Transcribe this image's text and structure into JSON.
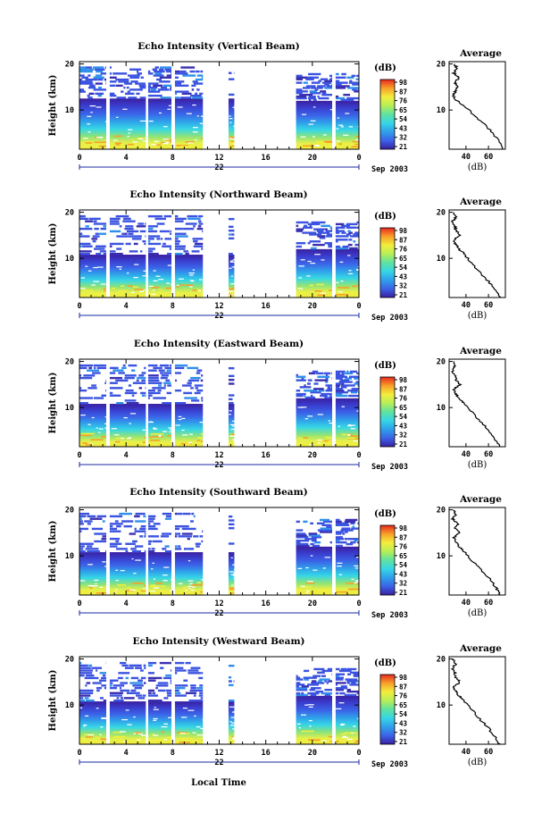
{
  "chart_data": {
    "type": "heatmap",
    "shared": {
      "xlabel": "Local Time",
      "x_ticks": [
        "0",
        "4",
        "8",
        "12",
        "16",
        "20",
        "0"
      ],
      "xlim": [
        0,
        24
      ],
      "day_label": "22",
      "date_label": "Sep 2003",
      "ylabel": "Height (km)",
      "y_ticks": [
        "20",
        "10"
      ],
      "ylim": [
        1.5,
        20.5
      ],
      "colorbar_unit": "(dB)",
      "colorbar_ticks": [
        "98",
        "87",
        "76",
        "65",
        "54",
        "43",
        "32",
        "21"
      ],
      "average_title": "Average",
      "average_xlabel": "(dB)",
      "average_xticks": [
        "40",
        "60"
      ],
      "average_xlim": [
        25,
        75
      ],
      "data_gaps_local_time": [
        [
          2.3,
          2.6
        ],
        [
          5.7,
          5.9
        ],
        [
          7.9,
          8.2
        ],
        [
          10.6,
          12.8
        ],
        [
          13.3,
          18.6
        ],
        [
          21.7,
          22.0
        ]
      ],
      "colors": [
        "#3a1fa0",
        "#3b63e8",
        "#2fa0ea",
        "#36d6e6",
        "#5fe2a0",
        "#b6ef58",
        "#f3ee3c",
        "#f8a028",
        "#e8281e"
      ]
    },
    "panels": [
      {
        "title": "Echo Intensity (Vertical Beam)",
        "average_profile": {
          "height_km": [
            1.5,
            3,
            5,
            7,
            9,
            11,
            12,
            13,
            14,
            15,
            16,
            17,
            18,
            19,
            20
          ],
          "db": [
            72,
            70,
            64,
            56,
            47,
            38,
            32,
            29,
            30,
            33,
            30,
            34,
            29,
            32,
            30
          ]
        }
      },
      {
        "title": "Echo Intensity (Northward Beam)",
        "average_profile": {
          "height_km": [
            1.5,
            3,
            5,
            7,
            9,
            11,
            12,
            13,
            14,
            15,
            16,
            17,
            18,
            19,
            20
          ],
          "db": [
            70,
            67,
            60,
            52,
            45,
            38,
            34,
            31,
            29,
            35,
            31,
            30,
            28,
            31,
            29
          ]
        }
      },
      {
        "title": "Echo Intensity (Eastward Beam)",
        "average_profile": {
          "height_km": [
            1.5,
            3,
            5,
            7,
            9,
            11,
            12,
            13,
            14,
            15,
            16,
            17,
            18,
            19,
            20
          ],
          "db": [
            70,
            66,
            60,
            53,
            45,
            38,
            34,
            31,
            29,
            35,
            31,
            30,
            28,
            30,
            29
          ]
        }
      },
      {
        "title": "Echo Intensity (Southward Beam)",
        "average_profile": {
          "height_km": [
            1.5,
            3,
            5,
            7,
            9,
            11,
            12,
            13,
            14,
            15,
            16,
            17,
            18,
            19,
            20
          ],
          "db": [
            70,
            67,
            61,
            53,
            45,
            38,
            34,
            31,
            29,
            35,
            30,
            33,
            28,
            31,
            29
          ]
        }
      },
      {
        "title": "Echo Intensity (Westward Beam)",
        "average_profile": {
          "height_km": [
            1.5,
            3,
            5,
            7,
            9,
            11,
            12,
            13,
            14,
            15,
            16,
            17,
            18,
            19,
            20
          ],
          "db": [
            70,
            66,
            60,
            52,
            45,
            38,
            34,
            31,
            29,
            35,
            31,
            30,
            28,
            31,
            29
          ]
        }
      }
    ]
  }
}
